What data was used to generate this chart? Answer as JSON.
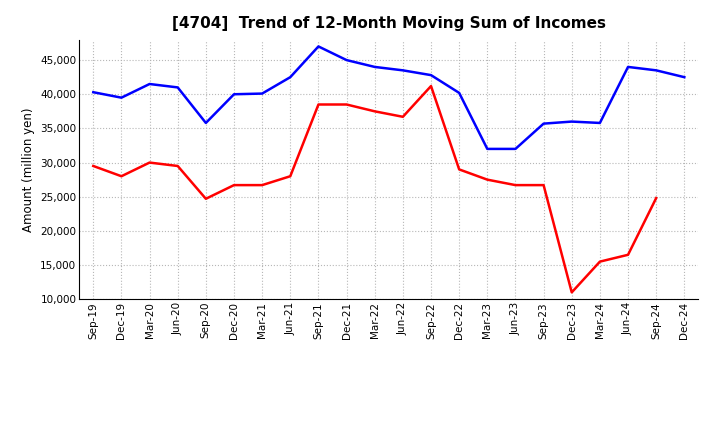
{
  "title": "[4704]  Trend of 12-Month Moving Sum of Incomes",
  "ylabel": "Amount (million yen)",
  "background_color": "#ffffff",
  "grid_color": "#b0b0b0",
  "x_labels": [
    "Sep-19",
    "Dec-19",
    "Mar-20",
    "Jun-20",
    "Sep-20",
    "Dec-20",
    "Mar-21",
    "Jun-21",
    "Sep-21",
    "Dec-21",
    "Mar-22",
    "Jun-22",
    "Sep-22",
    "Dec-22",
    "Mar-23",
    "Jun-23",
    "Sep-23",
    "Dec-23",
    "Mar-24",
    "Jun-24",
    "Sep-24",
    "Dec-24"
  ],
  "ordinary_income": [
    40300,
    39500,
    41500,
    41000,
    35800,
    40000,
    40100,
    42500,
    47000,
    45000,
    44000,
    43500,
    42800,
    40200,
    32000,
    32000,
    35700,
    36000,
    35800,
    44000,
    43500,
    42500
  ],
  "net_income": [
    29500,
    28000,
    30000,
    29500,
    24700,
    26700,
    26700,
    28000,
    38500,
    38500,
    37500,
    36700,
    41200,
    29000,
    27500,
    26700,
    26700,
    11000,
    15500,
    16500,
    24800,
    null
  ],
  "ordinary_color": "#0000ff",
  "net_color": "#ff0000",
  "ylim_min": 10000,
  "ylim_max": 48000,
  "yticks": [
    10000,
    15000,
    20000,
    25000,
    30000,
    35000,
    40000,
    45000
  ],
  "line_width": 1.8,
  "title_fontsize": 11,
  "tick_fontsize": 7.5,
  "ylabel_fontsize": 8.5
}
